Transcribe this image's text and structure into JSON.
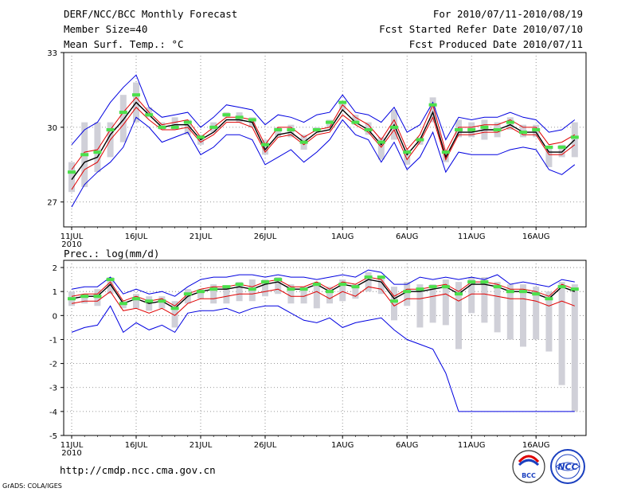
{
  "header": {
    "title": "DERF/NCC/BCC Monthly Forecast",
    "member_size": "Member Size=40",
    "variable_top": "Mean Surf. Temp.: °C",
    "period": "For 2010/07/11-2010/08/19",
    "refer_date": "Fcst Started Refer Date 2010/07/10",
    "produced_date": "Fcst Produced Date 2010/07/11"
  },
  "footer": {
    "url": "http://cmdp.ncc.cma.gov.cn",
    "grads": "GrADS: COLA/IGES",
    "logo_bcc": "BCC",
    "logo_ncc": "NCC"
  },
  "colors": {
    "bar": "#d0d0d8",
    "green": "#4be04b",
    "max": "#0000e0",
    "min": "#0000e0",
    "mean": "#000000",
    "red": "#e00000"
  },
  "chart_data": [
    {
      "type": "line",
      "title": "Mean Surf. Temp.: °C",
      "ylim": [
        26,
        33
      ],
      "yticks": [
        27,
        30,
        33
      ],
      "x": [
        1,
        2,
        3,
        4,
        5,
        6,
        7,
        8,
        9,
        10,
        11,
        12,
        13,
        14,
        15,
        16,
        17,
        18,
        19,
        20,
        21,
        22,
        23,
        24,
        25,
        26,
        27,
        28,
        29,
        30,
        31,
        32,
        33,
        34,
        35,
        36,
        37,
        38,
        39,
        40
      ],
      "xticks": [
        {
          "day": 1,
          "label": "11JUL",
          "sub": "2010"
        },
        {
          "day": 6,
          "label": "16JUL"
        },
        {
          "day": 11,
          "label": "21JUL"
        },
        {
          "day": 16,
          "label": "26JUL"
        },
        {
          "day": 22,
          "label": "1AUG"
        },
        {
          "day": 27,
          "label": "6AUG"
        },
        {
          "day": 32,
          "label": "11AUG"
        },
        {
          "day": 37,
          "label": "16AUG"
        }
      ],
      "series": [
        {
          "name": "max",
          "values": [
            29.3,
            29.9,
            30.2,
            31.0,
            31.6,
            32.1,
            30.8,
            30.4,
            30.5,
            30.6,
            30.0,
            30.4,
            30.9,
            30.8,
            30.7,
            30.1,
            30.5,
            30.4,
            30.2,
            30.5,
            30.6,
            31.3,
            30.6,
            30.5,
            30.2,
            30.8,
            29.8,
            30.1,
            31.0,
            29.5,
            30.4,
            30.3,
            30.4,
            30.4,
            30.6,
            30.4,
            30.3,
            29.8,
            29.9,
            30.3
          ]
        },
        {
          "name": "mean_upper",
          "values": [
            28.3,
            29.0,
            29.1,
            29.9,
            30.6,
            31.2,
            30.6,
            30.1,
            30.2,
            30.3,
            29.6,
            30.0,
            30.4,
            30.4,
            30.3,
            29.3,
            30.0,
            30.0,
            29.6,
            29.9,
            30.0,
            30.9,
            30.4,
            30.1,
            29.5,
            30.3,
            29.1,
            29.7,
            30.9,
            29.0,
            30.0,
            30.0,
            30.1,
            30.1,
            30.3,
            30.0,
            30.0,
            29.3,
            29.4,
            29.7
          ]
        },
        {
          "name": "mean",
          "values": [
            27.9,
            28.6,
            28.8,
            29.7,
            30.3,
            31.0,
            30.5,
            30.0,
            30.1,
            30.1,
            29.5,
            29.8,
            30.3,
            30.3,
            30.2,
            29.1,
            29.7,
            29.8,
            29.4,
            29.8,
            29.9,
            30.7,
            30.2,
            29.9,
            29.3,
            30.1,
            28.9,
            29.5,
            30.6,
            28.8,
            29.8,
            29.8,
            29.9,
            29.9,
            30.1,
            29.8,
            29.8,
            29.0,
            29.0,
            29.5
          ]
        },
        {
          "name": "mean_lower",
          "values": [
            27.5,
            28.3,
            28.6,
            29.5,
            30.1,
            30.8,
            30.3,
            29.9,
            29.9,
            30.0,
            29.4,
            29.7,
            30.2,
            30.2,
            30.0,
            29.0,
            29.6,
            29.7,
            29.3,
            29.7,
            29.8,
            30.5,
            30.1,
            29.8,
            29.2,
            29.9,
            28.7,
            29.4,
            30.4,
            28.7,
            29.7,
            29.7,
            29.8,
            29.8,
            30.0,
            29.7,
            29.7,
            28.9,
            28.9,
            29.3
          ]
        },
        {
          "name": "min",
          "values": [
            26.8,
            27.7,
            28.2,
            28.6,
            29.2,
            30.4,
            30.0,
            29.4,
            29.6,
            29.8,
            28.9,
            29.2,
            29.7,
            29.7,
            29.5,
            28.5,
            28.8,
            29.1,
            28.6,
            29.0,
            29.5,
            30.3,
            29.7,
            29.5,
            28.6,
            29.4,
            28.3,
            28.8,
            29.8,
            28.2,
            29.0,
            28.9,
            28.9,
            28.9,
            29.1,
            29.2,
            29.1,
            28.3,
            28.1,
            28.5
          ]
        }
      ],
      "ranges": [
        [
          27.4,
          28.6
        ],
        [
          27.6,
          30.2
        ],
        [
          28.2,
          30.2
        ],
        [
          28.8,
          30.2
        ],
        [
          29.4,
          31.3
        ],
        [
          30.2,
          31.8
        ],
        [
          30.4,
          30.8
        ],
        [
          29.9,
          30.2
        ],
        [
          29.9,
          30.4
        ],
        [
          29.7,
          30.3
        ],
        [
          29.3,
          29.7
        ],
        [
          29.8,
          30.2
        ],
        [
          30.4,
          30.6
        ],
        [
          30.2,
          30.6
        ],
        [
          30.0,
          30.4
        ],
        [
          28.9,
          29.5
        ],
        [
          29.6,
          30.0
        ],
        [
          29.6,
          30.1
        ],
        [
          29.1,
          29.7
        ],
        [
          29.8,
          30.0
        ],
        [
          30.0,
          30.3
        ],
        [
          30.7,
          31.0
        ],
        [
          30.1,
          30.5
        ],
        [
          29.7,
          30.2
        ],
        [
          28.7,
          29.6
        ],
        [
          29.5,
          30.7
        ],
        [
          28.5,
          29.1
        ],
        [
          29.3,
          29.6
        ],
        [
          30.2,
          31.2
        ],
        [
          28.6,
          29.0
        ],
        [
          29.6,
          30.3
        ],
        [
          29.6,
          30.2
        ],
        [
          29.5,
          30.3
        ],
        [
          29.6,
          30.2
        ],
        [
          29.9,
          30.4
        ],
        [
          29.6,
          30.1
        ],
        [
          29.6,
          30.1
        ],
        [
          28.4,
          29.2
        ],
        [
          28.8,
          29.3
        ],
        [
          28.8,
          30.2
        ]
      ],
      "green": [
        28.2,
        28.9,
        29.0,
        29.9,
        30.6,
        31.3,
        30.5,
        30.0,
        30.0,
        30.2,
        29.6,
        30.0,
        30.5,
        30.4,
        30.3,
        29.3,
        29.9,
        29.9,
        29.4,
        29.9,
        30.2,
        31.0,
        30.2,
        29.9,
        29.4,
        30.0,
        29.0,
        29.5,
        30.9,
        29.0,
        29.9,
        29.9,
        30.0,
        29.9,
        30.2,
        29.8,
        29.9,
        29.2,
        29.2,
        29.6
      ]
    },
    {
      "type": "line",
      "title": "Prec.: log(mm/d)",
      "ylim": [
        -5,
        2.3
      ],
      "yticks": [
        -5,
        -4,
        -3,
        -2,
        -1,
        0,
        1,
        2
      ],
      "x": [
        1,
        2,
        3,
        4,
        5,
        6,
        7,
        8,
        9,
        10,
        11,
        12,
        13,
        14,
        15,
        16,
        17,
        18,
        19,
        20,
        21,
        22,
        23,
        24,
        25,
        26,
        27,
        28,
        29,
        30,
        31,
        32,
        33,
        34,
        35,
        36,
        37,
        38,
        39,
        40
      ],
      "xticks": [
        {
          "day": 1,
          "label": "11JUL",
          "sub": "2010"
        },
        {
          "day": 6,
          "label": "16JUL"
        },
        {
          "day": 11,
          "label": "21JUL"
        },
        {
          "day": 16,
          "label": "26JUL"
        },
        {
          "day": 22,
          "label": "1AUG"
        },
        {
          "day": 27,
          "label": "6AUG"
        },
        {
          "day": 32,
          "label": "11AUG"
        },
        {
          "day": 37,
          "label": "16AUG"
        }
      ],
      "series": [
        {
          "name": "max",
          "values": [
            1.1,
            1.2,
            1.2,
            1.6,
            0.9,
            1.1,
            0.9,
            1.0,
            0.8,
            1.2,
            1.5,
            1.6,
            1.6,
            1.7,
            1.7,
            1.6,
            1.7,
            1.6,
            1.6,
            1.5,
            1.6,
            1.7,
            1.6,
            1.9,
            1.8,
            1.3,
            1.3,
            1.6,
            1.5,
            1.6,
            1.5,
            1.6,
            1.5,
            1.7,
            1.3,
            1.4,
            1.3,
            1.2,
            1.5,
            1.4
          ]
        },
        {
          "name": "mean_upper",
          "values": [
            0.8,
            0.9,
            0.9,
            1.4,
            0.6,
            0.8,
            0.6,
            0.7,
            0.4,
            0.9,
            1.1,
            1.2,
            1.2,
            1.3,
            1.2,
            1.4,
            1.5,
            1.2,
            1.2,
            1.4,
            1.1,
            1.4,
            1.3,
            1.6,
            1.5,
            0.8,
            1.1,
            1.1,
            1.2,
            1.3,
            1.0,
            1.4,
            1.4,
            1.3,
            1.1,
            1.1,
            1.0,
            0.8,
            1.3,
            1.1
          ]
        },
        {
          "name": "mean",
          "values": [
            0.7,
            0.8,
            0.8,
            1.3,
            0.5,
            0.7,
            0.5,
            0.6,
            0.3,
            0.8,
            1.0,
            1.1,
            1.1,
            1.2,
            1.1,
            1.3,
            1.4,
            1.1,
            1.1,
            1.3,
            1.0,
            1.3,
            1.2,
            1.5,
            1.4,
            0.7,
            1.0,
            1.0,
            1.1,
            1.2,
            0.9,
            1.3,
            1.3,
            1.2,
            1.0,
            1.0,
            0.9,
            0.7,
            1.2,
            1.0
          ]
        },
        {
          "name": "min_red",
          "values": [
            0.5,
            0.6,
            0.6,
            1.0,
            0.2,
            0.3,
            0.1,
            0.3,
            0.0,
            0.5,
            0.7,
            0.7,
            0.8,
            0.9,
            0.9,
            1.0,
            1.1,
            0.8,
            0.8,
            1.0,
            0.7,
            1.0,
            0.8,
            1.2,
            1.1,
            0.4,
            0.7,
            0.7,
            0.8,
            0.9,
            0.6,
            0.9,
            0.9,
            0.8,
            0.7,
            0.7,
            0.6,
            0.4,
            0.6,
            0.4
          ]
        },
        {
          "name": "min",
          "values": [
            -0.7,
            -0.5,
            -0.4,
            0.4,
            -0.7,
            -0.3,
            -0.6,
            -0.4,
            -0.7,
            0.1,
            0.2,
            0.2,
            0.3,
            0.1,
            0.3,
            0.4,
            0.4,
            0.1,
            -0.2,
            -0.3,
            -0.1,
            -0.5,
            -0.3,
            -0.2,
            -0.1,
            -0.6,
            -1.0,
            -1.2,
            -1.4,
            -2.4,
            -4.0,
            -4.0,
            -4.0,
            -4.0,
            -4.0,
            -4.0,
            -4.0,
            -4.0,
            -4.0,
            -4.0
          ]
        }
      ],
      "ranges": [
        [
          0.4,
          1.0
        ],
        [
          0.5,
          0.9
        ],
        [
          0.4,
          1.1
        ],
        [
          0.9,
          1.6
        ],
        [
          0.3,
          0.6
        ],
        [
          0.3,
          0.9
        ],
        [
          0.2,
          0.8
        ],
        [
          0.3,
          0.8
        ],
        [
          -0.5,
          0.6
        ],
        [
          0.5,
          1.1
        ],
        [
          0.7,
          1.1
        ],
        [
          0.5,
          1.3
        ],
        [
          0.5,
          1.2
        ],
        [
          0.6,
          1.4
        ],
        [
          0.6,
          1.5
        ],
        [
          0.8,
          1.5
        ],
        [
          0.9,
          1.6
        ],
        [
          0.5,
          1.3
        ],
        [
          0.5,
          1.2
        ],
        [
          0.3,
          1.4
        ],
        [
          0.5,
          1.2
        ],
        [
          0.6,
          1.5
        ],
        [
          0.7,
          1.3
        ],
        [
          1.0,
          1.8
        ],
        [
          0.9,
          1.6
        ],
        [
          -0.2,
          1.2
        ],
        [
          0.4,
          1.4
        ],
        [
          -0.5,
          1.3
        ],
        [
          -0.3,
          1.3
        ],
        [
          -0.4,
          1.5
        ],
        [
          -1.4,
          1.4
        ],
        [
          0.1,
          1.6
        ],
        [
          -0.3,
          1.6
        ],
        [
          -0.7,
          1.4
        ],
        [
          -1.0,
          1.3
        ],
        [
          -1.3,
          1.3
        ],
        [
          -1.0,
          1.2
        ],
        [
          -1.5,
          1.0
        ],
        [
          -2.9,
          1.4
        ],
        [
          -4.0,
          1.3
        ]
      ],
      "green": [
        0.7,
        0.8,
        0.8,
        1.5,
        0.5,
        0.7,
        0.6,
        0.6,
        0.3,
        0.9,
        1.0,
        1.1,
        1.2,
        1.3,
        1.1,
        1.4,
        1.5,
        1.1,
        1.1,
        1.3,
        1.0,
        1.3,
        1.2,
        1.6,
        1.6,
        0.6,
        1.0,
        1.1,
        1.2,
        1.2,
        0.9,
        1.4,
        1.4,
        1.2,
        1.0,
        1.0,
        0.9,
        0.7,
        1.2,
        1.1
      ]
    }
  ]
}
